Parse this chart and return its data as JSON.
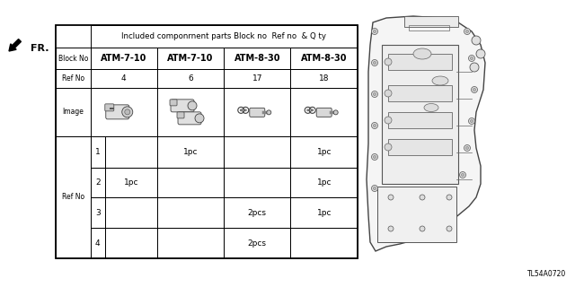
{
  "title": "Included componrnent parts Block no  Ref no  & Q ty",
  "block_nos": [
    "ATM-7-10",
    "ATM-7-10",
    "ATM-8-30",
    "ATM-8-30"
  ],
  "ref_nos": [
    "4",
    "6",
    "17",
    "18"
  ],
  "ref_no_label": "Ref No",
  "block_no_label": "Block No",
  "image_label": "Image",
  "ref_no_side_label": "Ref No",
  "qty_rows": [
    [
      "1",
      "",
      "1pc",
      "",
      "1pc"
    ],
    [
      "2",
      "1pc",
      "",
      "",
      "1pc"
    ],
    [
      "3",
      "",
      "",
      "2pcs",
      "1pc"
    ],
    [
      "4",
      "",
      "",
      "2pcs",
      ""
    ]
  ],
  "part_code": "TL54A0720",
  "bg_color": "#ffffff"
}
